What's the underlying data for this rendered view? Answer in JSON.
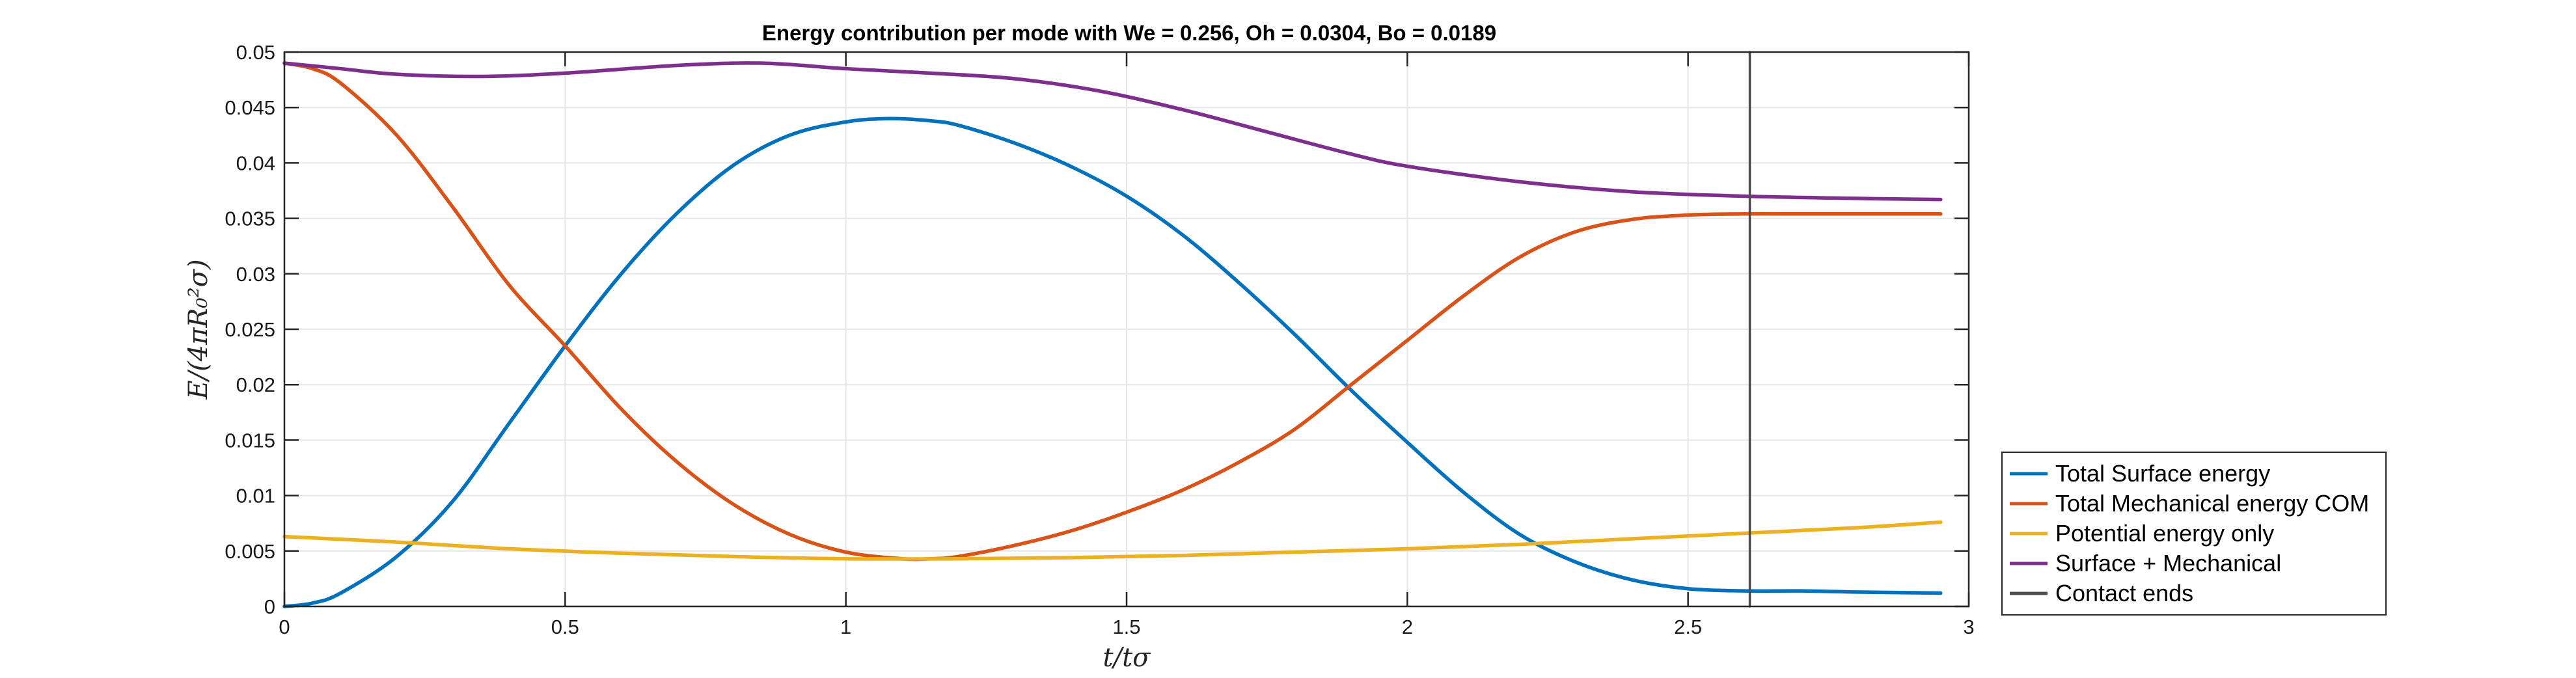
{
  "chart_data": {
    "type": "line",
    "title": "Energy contribution per mode with We = 0.256, Oh = 0.0304, Bo = 0.0189",
    "xlabel": "t/tσ",
    "ylabel": "E/(4πR₀²σ)",
    "xlim": [
      0,
      3
    ],
    "ylim": [
      0,
      0.05
    ],
    "xticks": [
      0,
      0.5,
      1,
      1.5,
      2,
      2.5,
      3
    ],
    "xtick_labels": [
      "0",
      "0.5",
      "1",
      "1.5",
      "2",
      "2.5",
      "3"
    ],
    "yticks": [
      0,
      0.005,
      0.01,
      0.015,
      0.02,
      0.025,
      0.03,
      0.035,
      0.04,
      0.045,
      0.05
    ],
    "ytick_labels": [
      "0",
      "0.005",
      "0.01",
      "0.015",
      "0.02",
      "0.025",
      "0.03",
      "0.035",
      "0.04",
      "0.045",
      "0.05"
    ],
    "grid": true,
    "legend_position": "outside-bottom-right",
    "series": [
      {
        "name": "Total Surface energy",
        "color": "#0072BD",
        "x": [
          0,
          0.05,
          0.1,
          0.2,
          0.3,
          0.4,
          0.5,
          0.6,
          0.7,
          0.8,
          0.9,
          1.0,
          1.08,
          1.15,
          1.2,
          1.3,
          1.4,
          1.5,
          1.6,
          1.7,
          1.8,
          1.9,
          2.0,
          2.1,
          2.2,
          2.3,
          2.4,
          2.5,
          2.6,
          2.7,
          2.8,
          2.95
        ],
        "y": [
          0,
          0.0003,
          0.0012,
          0.0045,
          0.0095,
          0.0165,
          0.0235,
          0.03,
          0.0355,
          0.0398,
          0.0425,
          0.0437,
          0.044,
          0.0438,
          0.0434,
          0.0418,
          0.0397,
          0.037,
          0.0335,
          0.0292,
          0.0245,
          0.0195,
          0.0148,
          0.0103,
          0.0065,
          0.004,
          0.0024,
          0.0016,
          0.0014,
          0.0014,
          0.0013,
          0.0012
        ]
      },
      {
        "name": "Total Mechanical energy COM",
        "color": "#D95319",
        "x": [
          0,
          0.05,
          0.1,
          0.2,
          0.3,
          0.4,
          0.5,
          0.6,
          0.7,
          0.8,
          0.9,
          1.0,
          1.1,
          1.15,
          1.2,
          1.3,
          1.4,
          1.5,
          1.6,
          1.7,
          1.8,
          1.9,
          2.0,
          2.1,
          2.2,
          2.3,
          2.4,
          2.5,
          2.6,
          2.7,
          2.8,
          2.95
        ],
        "y": [
          0.049,
          0.0485,
          0.0472,
          0.0425,
          0.036,
          0.029,
          0.0235,
          0.0178,
          0.013,
          0.0092,
          0.0065,
          0.0049,
          0.0043,
          0.0043,
          0.0045,
          0.0055,
          0.0068,
          0.0085,
          0.0105,
          0.013,
          0.016,
          0.02,
          0.024,
          0.028,
          0.0315,
          0.0338,
          0.0349,
          0.0353,
          0.0354,
          0.0354,
          0.0354,
          0.0354
        ]
      },
      {
        "name": "Potential energy only",
        "color": "#EDB120",
        "x": [
          0,
          0.2,
          0.4,
          0.6,
          0.8,
          1.0,
          1.2,
          1.4,
          1.6,
          1.8,
          2.0,
          2.2,
          2.4,
          2.6,
          2.8,
          2.95
        ],
        "y": [
          0.0063,
          0.0058,
          0.0052,
          0.0048,
          0.0045,
          0.0043,
          0.0043,
          0.0044,
          0.0046,
          0.0049,
          0.0052,
          0.0056,
          0.0061,
          0.0066,
          0.0071,
          0.0076
        ]
      },
      {
        "name": "Surface + Mechanical",
        "color": "#7E2F8E",
        "x": [
          0,
          0.1,
          0.2,
          0.35,
          0.5,
          0.7,
          0.85,
          1.0,
          1.15,
          1.3,
          1.45,
          1.6,
          1.75,
          1.9,
          2.0,
          2.2,
          2.4,
          2.6,
          2.8,
          2.95
        ],
        "y": [
          0.049,
          0.0485,
          0.048,
          0.0478,
          0.0481,
          0.0488,
          0.049,
          0.0485,
          0.0481,
          0.0476,
          0.0465,
          0.0448,
          0.0428,
          0.0408,
          0.0397,
          0.0383,
          0.0374,
          0.037,
          0.0368,
          0.0367
        ]
      },
      {
        "name": "Contact ends",
        "color": "#4D4D4D",
        "x": [
          2.61,
          2.61
        ],
        "y": [
          0,
          0.05
        ]
      }
    ]
  }
}
